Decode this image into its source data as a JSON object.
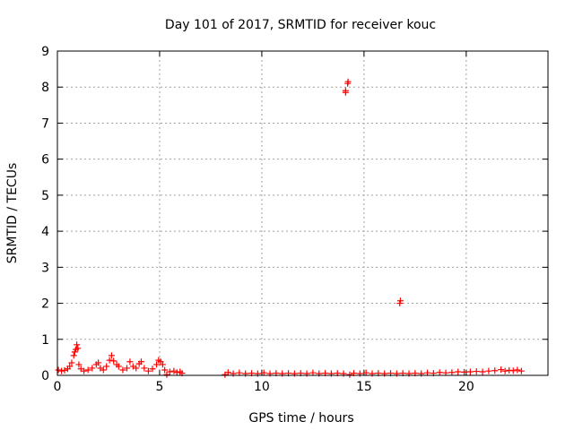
{
  "chart_data": {
    "type": "scatter",
    "title": "Day 101 of 2017, SRMTID for receiver kouc",
    "xlabel": "GPS time / hours",
    "ylabel": "SRMTID / TECUs",
    "xlim": [
      0,
      24
    ],
    "ylim": [
      0,
      9
    ],
    "xticks": [
      0,
      5,
      10,
      15,
      20
    ],
    "yticks": [
      0,
      1,
      2,
      3,
      4,
      5,
      6,
      7,
      8,
      9
    ],
    "grid": true,
    "marker": "+",
    "series": [
      {
        "name": "SRMTID",
        "color": "#ff0000",
        "points": [
          [
            0.05,
            0.15
          ],
          [
            0.2,
            0.12
          ],
          [
            0.35,
            0.14
          ],
          [
            0.5,
            0.18
          ],
          [
            0.6,
            0.25
          ],
          [
            0.7,
            0.35
          ],
          [
            0.8,
            0.55
          ],
          [
            0.85,
            0.65
          ],
          [
            0.9,
            0.72
          ],
          [
            0.95,
            0.85
          ],
          [
            1.0,
            0.75
          ],
          [
            1.05,
            0.3
          ],
          [
            1.15,
            0.18
          ],
          [
            1.3,
            0.12
          ],
          [
            1.5,
            0.15
          ],
          [
            1.7,
            0.2
          ],
          [
            1.9,
            0.3
          ],
          [
            2.0,
            0.35
          ],
          [
            2.1,
            0.2
          ],
          [
            2.25,
            0.15
          ],
          [
            2.4,
            0.25
          ],
          [
            2.55,
            0.42
          ],
          [
            2.65,
            0.55
          ],
          [
            2.75,
            0.4
          ],
          [
            2.9,
            0.3
          ],
          [
            3.0,
            0.25
          ],
          [
            3.2,
            0.15
          ],
          [
            3.4,
            0.2
          ],
          [
            3.55,
            0.38
          ],
          [
            3.7,
            0.25
          ],
          [
            3.85,
            0.2
          ],
          [
            4.0,
            0.32
          ],
          [
            4.1,
            0.38
          ],
          [
            4.25,
            0.2
          ],
          [
            4.45,
            0.12
          ],
          [
            4.65,
            0.18
          ],
          [
            4.85,
            0.3
          ],
          [
            4.95,
            0.42
          ],
          [
            5.05,
            0.38
          ],
          [
            5.15,
            0.3
          ],
          [
            5.25,
            0.15
          ],
          [
            5.35,
            0.02
          ],
          [
            5.5,
            0.1
          ],
          [
            5.7,
            0.12
          ],
          [
            5.85,
            0.08
          ],
          [
            6.0,
            0.1
          ],
          [
            6.1,
            0.06
          ],
          [
            8.2,
            0.02
          ],
          [
            8.35,
            0.08
          ],
          [
            8.6,
            0.05
          ],
          [
            8.9,
            0.07
          ],
          [
            9.2,
            0.05
          ],
          [
            9.5,
            0.06
          ],
          [
            9.8,
            0.05
          ],
          [
            10.1,
            0.07
          ],
          [
            10.4,
            0.05
          ],
          [
            10.7,
            0.06
          ],
          [
            11.0,
            0.05
          ],
          [
            11.3,
            0.06
          ],
          [
            11.6,
            0.05
          ],
          [
            11.9,
            0.06
          ],
          [
            12.2,
            0.05
          ],
          [
            12.5,
            0.07
          ],
          [
            12.8,
            0.05
          ],
          [
            13.1,
            0.06
          ],
          [
            13.4,
            0.05
          ],
          [
            13.7,
            0.06
          ],
          [
            14.0,
            0.05
          ],
          [
            14.3,
            0.02
          ],
          [
            14.1,
            7.85
          ],
          [
            14.1,
            7.9
          ],
          [
            14.2,
            8.1
          ],
          [
            14.22,
            8.15
          ],
          [
            14.5,
            0.06
          ],
          [
            14.8,
            0.05
          ],
          [
            15.1,
            0.07
          ],
          [
            15.4,
            0.05
          ],
          [
            15.7,
            0.06
          ],
          [
            16.0,
            0.05
          ],
          [
            16.3,
            0.06
          ],
          [
            16.6,
            0.05
          ],
          [
            16.75,
            2.0
          ],
          [
            16.78,
            2.07
          ],
          [
            16.9,
            0.06
          ],
          [
            17.2,
            0.05
          ],
          [
            17.5,
            0.06
          ],
          [
            17.8,
            0.05
          ],
          [
            18.1,
            0.07
          ],
          [
            18.4,
            0.06
          ],
          [
            18.7,
            0.08
          ],
          [
            19.0,
            0.07
          ],
          [
            19.3,
            0.08
          ],
          [
            19.6,
            0.1
          ],
          [
            19.9,
            0.09
          ],
          [
            20.2,
            0.1
          ],
          [
            20.5,
            0.11
          ],
          [
            20.8,
            0.1
          ],
          [
            21.1,
            0.12
          ],
          [
            21.4,
            0.13
          ],
          [
            21.7,
            0.16
          ],
          [
            21.9,
            0.12
          ],
          [
            22.1,
            0.14
          ],
          [
            22.3,
            0.13
          ],
          [
            22.5,
            0.15
          ],
          [
            22.7,
            0.12
          ]
        ]
      }
    ]
  }
}
